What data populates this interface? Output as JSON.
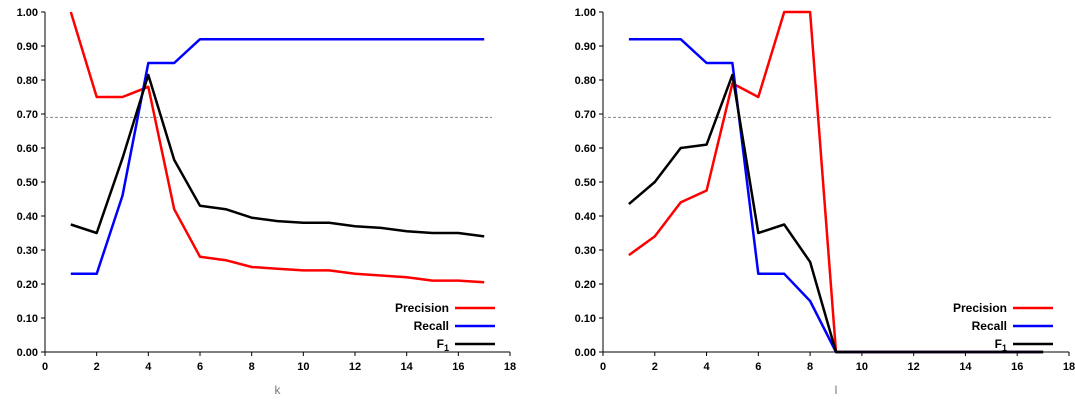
{
  "chart_data": [
    {
      "type": "line",
      "xlabel": "k",
      "ylabel": "",
      "xlim": [
        0,
        18
      ],
      "ylim": [
        0,
        1
      ],
      "xticks": [
        "0",
        "2",
        "4",
        "6",
        "8",
        "10",
        "12",
        "14",
        "16",
        "18"
      ],
      "yticks": [
        "0.00",
        "0.10",
        "0.20",
        "0.30",
        "0.40",
        "0.50",
        "0.60",
        "0.70",
        "0.80",
        "0.90",
        "1.00"
      ],
      "reference_line": 0.69,
      "legend_position": "bottom-right",
      "x": [
        1,
        2,
        3,
        4,
        5,
        6,
        7,
        8,
        9,
        10,
        11,
        12,
        13,
        14,
        15,
        16,
        17
      ],
      "series": [
        {
          "name": "Precision",
          "color": "#ff0000",
          "values": [
            1.0,
            0.75,
            0.75,
            0.78,
            0.42,
            0.28,
            0.27,
            0.25,
            0.245,
            0.24,
            0.24,
            0.23,
            0.225,
            0.22,
            0.21,
            0.21,
            0.205
          ]
        },
        {
          "name": "Recall",
          "color": "#0000ff",
          "values": [
            0.23,
            0.23,
            0.46,
            0.85,
            0.85,
            0.92,
            0.92,
            0.92,
            0.92,
            0.92,
            0.92,
            0.92,
            0.92,
            0.92,
            0.92,
            0.92,
            0.92
          ]
        },
        {
          "name": "F",
          "subscript": "1",
          "color": "#000000",
          "values": [
            0.375,
            0.35,
            0.57,
            0.815,
            0.565,
            0.43,
            0.42,
            0.395,
            0.385,
            0.38,
            0.38,
            0.37,
            0.365,
            0.355,
            0.35,
            0.35,
            0.34
          ]
        }
      ]
    },
    {
      "type": "line",
      "xlabel": "l",
      "ylabel": "",
      "xlim": [
        0,
        18
      ],
      "ylim": [
        0,
        1
      ],
      "xticks": [
        "0",
        "2",
        "4",
        "6",
        "8",
        "10",
        "12",
        "14",
        "16",
        "18"
      ],
      "yticks": [
        "0.00",
        "0.10",
        "0.20",
        "0.30",
        "0.40",
        "0.50",
        "0.60",
        "0.70",
        "0.80",
        "0.90",
        "1.00"
      ],
      "reference_line": 0.69,
      "legend_position": "bottom-right",
      "x": [
        1,
        2,
        3,
        4,
        5,
        6,
        7,
        8,
        9,
        10,
        11,
        12,
        13,
        14,
        15,
        16,
        17
      ],
      "series": [
        {
          "name": "Precision",
          "color": "#ff0000",
          "values": [
            0.285,
            0.34,
            0.44,
            0.475,
            0.79,
            0.75,
            1.0,
            1.0,
            0,
            0,
            0,
            0,
            0,
            0,
            0,
            0,
            0
          ]
        },
        {
          "name": "Recall",
          "color": "#0000ff",
          "values": [
            0.92,
            0.92,
            0.92,
            0.85,
            0.85,
            0.23,
            0.23,
            0.15,
            0,
            0,
            0,
            0,
            0,
            0,
            0,
            0,
            0
          ]
        },
        {
          "name": "F",
          "subscript": "1",
          "color": "#000000",
          "values": [
            0.435,
            0.5,
            0.6,
            0.61,
            0.815,
            0.35,
            0.375,
            0.265,
            0,
            0,
            0,
            0,
            0,
            0,
            0,
            0,
            0
          ]
        }
      ]
    }
  ]
}
